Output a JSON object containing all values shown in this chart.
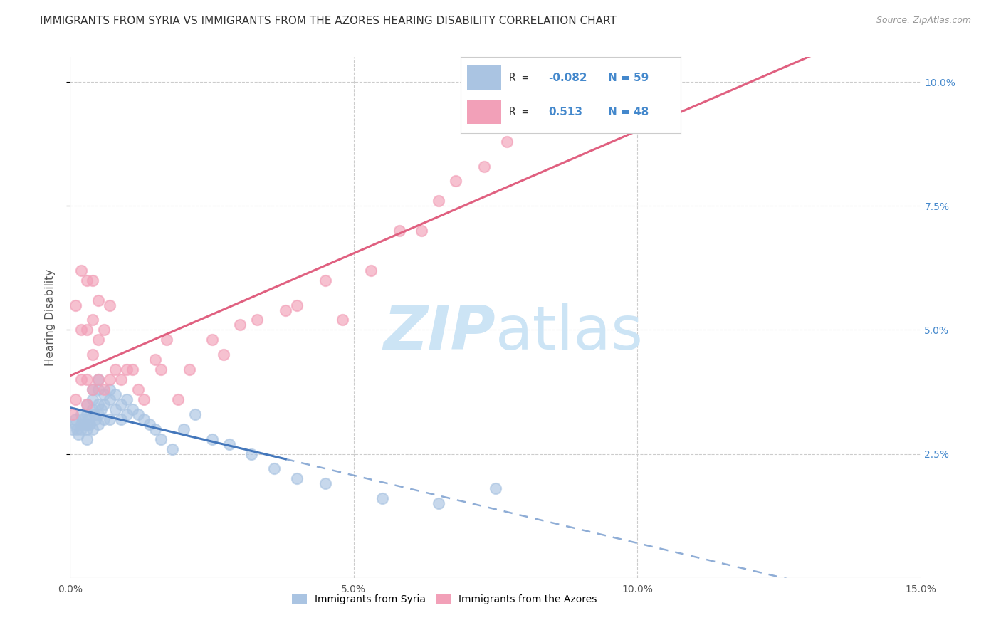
{
  "title": "IMMIGRANTS FROM SYRIA VS IMMIGRANTS FROM THE AZORES HEARING DISABILITY CORRELATION CHART",
  "source": "Source: ZipAtlas.com",
  "ylabel": "Hearing Disability",
  "x_min": 0.0,
  "x_max": 0.15,
  "y_min": 0.0,
  "y_max": 0.105,
  "legend_r_syria": "-0.082",
  "legend_n_syria": "59",
  "legend_r_azores": "0.513",
  "legend_n_azores": "48",
  "color_syria": "#aac4e2",
  "color_azores": "#f2a0b8",
  "line_color_syria": "#4477bb",
  "line_color_azores": "#e06080",
  "background_color": "#ffffff",
  "watermark_color": "#cce4f5",
  "grid_color": "#cccccc",
  "right_tick_color": "#4488cc",
  "title_fontsize": 11,
  "ylabel_fontsize": 11,
  "tick_fontsize": 10,
  "syria_points_x": [
    0.0005,
    0.001,
    0.001,
    0.0012,
    0.0015,
    0.002,
    0.002,
    0.002,
    0.0022,
    0.0025,
    0.003,
    0.003,
    0.003,
    0.003,
    0.003,
    0.0032,
    0.0035,
    0.004,
    0.004,
    0.004,
    0.004,
    0.0042,
    0.0045,
    0.005,
    0.005,
    0.005,
    0.005,
    0.005,
    0.0055,
    0.006,
    0.006,
    0.006,
    0.007,
    0.007,
    0.007,
    0.008,
    0.008,
    0.009,
    0.009,
    0.01,
    0.01,
    0.011,
    0.012,
    0.013,
    0.014,
    0.015,
    0.016,
    0.018,
    0.02,
    0.022,
    0.025,
    0.028,
    0.032,
    0.036,
    0.04,
    0.045,
    0.055,
    0.065,
    0.075
  ],
  "syria_points_y": [
    0.03,
    0.031,
    0.032,
    0.03,
    0.029,
    0.033,
    0.031,
    0.03,
    0.032,
    0.031,
    0.035,
    0.033,
    0.031,
    0.03,
    0.028,
    0.032,
    0.031,
    0.038,
    0.036,
    0.034,
    0.03,
    0.033,
    0.032,
    0.04,
    0.038,
    0.035,
    0.033,
    0.031,
    0.034,
    0.037,
    0.035,
    0.032,
    0.038,
    0.036,
    0.032,
    0.037,
    0.034,
    0.035,
    0.032,
    0.036,
    0.033,
    0.034,
    0.033,
    0.032,
    0.031,
    0.03,
    0.028,
    0.026,
    0.03,
    0.033,
    0.028,
    0.027,
    0.025,
    0.022,
    0.02,
    0.019,
    0.016,
    0.015,
    0.018
  ],
  "azores_points_x": [
    0.0005,
    0.001,
    0.001,
    0.002,
    0.002,
    0.002,
    0.003,
    0.003,
    0.003,
    0.003,
    0.004,
    0.004,
    0.004,
    0.004,
    0.005,
    0.005,
    0.005,
    0.006,
    0.006,
    0.007,
    0.007,
    0.008,
    0.009,
    0.01,
    0.011,
    0.012,
    0.013,
    0.015,
    0.016,
    0.017,
    0.019,
    0.021,
    0.025,
    0.027,
    0.03,
    0.033,
    0.038,
    0.04,
    0.045,
    0.048,
    0.053,
    0.058,
    0.062,
    0.065,
    0.068,
    0.073,
    0.077,
    0.082
  ],
  "azores_points_y": [
    0.033,
    0.036,
    0.055,
    0.04,
    0.05,
    0.062,
    0.035,
    0.04,
    0.05,
    0.06,
    0.038,
    0.045,
    0.052,
    0.06,
    0.04,
    0.048,
    0.056,
    0.038,
    0.05,
    0.04,
    0.055,
    0.042,
    0.04,
    0.042,
    0.042,
    0.038,
    0.036,
    0.044,
    0.042,
    0.048,
    0.036,
    0.042,
    0.048,
    0.045,
    0.051,
    0.052,
    0.054,
    0.055,
    0.06,
    0.052,
    0.062,
    0.07,
    0.07,
    0.076,
    0.08,
    0.083,
    0.088,
    0.095
  ]
}
